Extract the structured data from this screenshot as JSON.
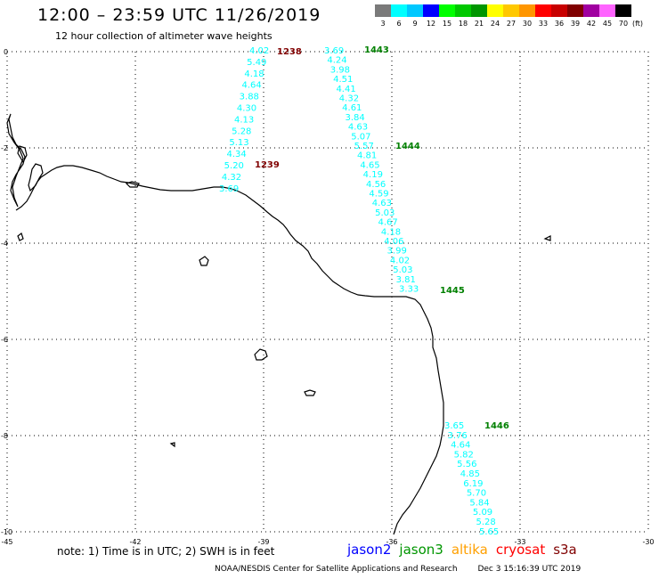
{
  "header": {
    "title": "12:00 – 23:59 UTC 11/26/2019",
    "subtitle": "12 hour collection of altimeter wave heights"
  },
  "legend": {
    "labels": [
      "3",
      "6",
      "9",
      "12",
      "15",
      "18",
      "21",
      "24",
      "27",
      "30",
      "33",
      "36",
      "39",
      "42",
      "45",
      "70"
    ],
    "unit": "(ft)",
    "colors": [
      "#7a7a7a",
      "#00ffff",
      "#00c8ff",
      "#0000ff",
      "#00ff00",
      "#00c800",
      "#009600",
      "#ffff00",
      "#ffc800",
      "#ff9600",
      "#ff0000",
      "#c80000",
      "#800000",
      "#a000a0",
      "#ff64ff",
      "#000000"
    ]
  },
  "axes": {
    "lon_labels": [
      "-45",
      "-42",
      "-39",
      "-36",
      "-33",
      "-30"
    ],
    "lat_labels": [
      "0",
      "-2",
      "-4",
      "-6",
      "-8",
      "-10"
    ]
  },
  "tracks": [
    {
      "satellite_color": "#00ffff",
      "start_time": "1238",
      "end_time": "1239",
      "time_color": "#800000",
      "values": [
        "4.02",
        "5.49",
        "4.18",
        "4.64",
        "3.88",
        "4.30",
        "4.13",
        "5.28",
        "5.13",
        "4.34",
        "5.20",
        "4.32",
        "3.69"
      ]
    },
    {
      "satellite_color": "#00ffff",
      "start_time": "1443",
      "mid_time": "1444",
      "end_time": "1445",
      "time_color": "#008000",
      "values": [
        "3.69",
        "4.24",
        "3.98",
        "4.51",
        "4.41",
        "4.32",
        "4.61",
        "3.84",
        "4.63",
        "5.07",
        "5.57",
        "4.81",
        "4.65",
        "4.19",
        "4.56",
        "4.59",
        "4.63",
        "5.03",
        "4.67",
        "4.18",
        "4.06",
        "3.99",
        "4.02",
        "5.03",
        "3.81",
        "3.33"
      ]
    },
    {
      "satellite_color": "#00ffff",
      "start_time": "1446",
      "time_color": "#008000",
      "values": [
        "3.65",
        "3.76",
        "4.64",
        "5.82",
        "5.56",
        "4.85",
        "6.19",
        "5.70",
        "5.84",
        "5.09",
        "5.28",
        "5.65"
      ]
    }
  ],
  "note": "note:  1) Time is in UTC;  2) SWH is in feet",
  "satellites": [
    {
      "name": "jason2",
      "color": "#0000ff"
    },
    {
      "name": "jason3",
      "color": "#009600"
    },
    {
      "name": "altika",
      "color": "#ffa000"
    },
    {
      "name": "cryosat",
      "color": "#ff0000"
    },
    {
      "name": "s3a",
      "color": "#800000"
    }
  ],
  "footer": {
    "credit": "NOAA/NESDIS Center for Satellite Applications and Research",
    "timestamp": "Dec  3 15:16:39 UTC 2019"
  }
}
